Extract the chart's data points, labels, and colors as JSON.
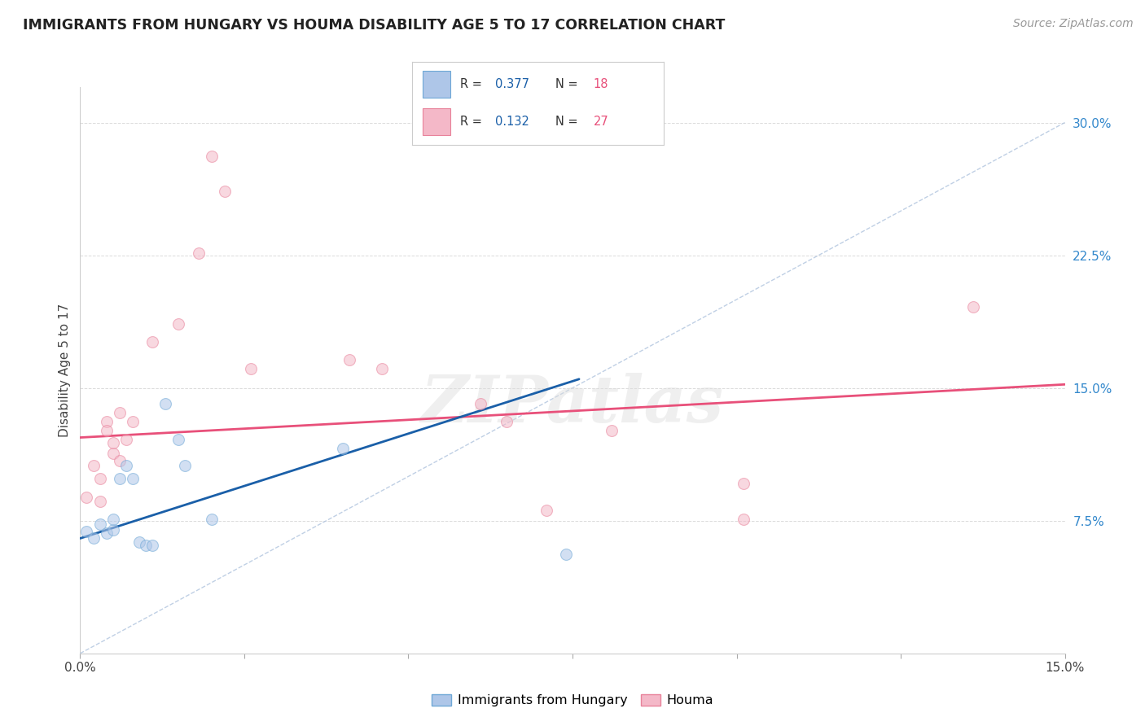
{
  "title": "IMMIGRANTS FROM HUNGARY VS HOUMA DISABILITY AGE 5 TO 17 CORRELATION CHART",
  "source": "Source: ZipAtlas.com",
  "ylabel": "Disability Age 5 to 17",
  "xlim": [
    0.0,
    0.15
  ],
  "ylim": [
    0.0,
    0.32
  ],
  "xticks": [
    0.0,
    0.025,
    0.05,
    0.075,
    0.1,
    0.125,
    0.15
  ],
  "xticklabels": [
    "0.0%",
    "",
    "",
    "",
    "",
    "",
    "15.0%"
  ],
  "yticks_right": [
    0.075,
    0.15,
    0.225,
    0.3
  ],
  "ytick_labels_right": [
    "7.5%",
    "15.0%",
    "22.5%",
    "30.0%"
  ],
  "blue_scatter": [
    [
      0.001,
      0.069
    ],
    [
      0.002,
      0.065
    ],
    [
      0.003,
      0.073
    ],
    [
      0.004,
      0.068
    ],
    [
      0.005,
      0.07
    ],
    [
      0.005,
      0.076
    ],
    [
      0.006,
      0.099
    ],
    [
      0.007,
      0.106
    ],
    [
      0.008,
      0.099
    ],
    [
      0.009,
      0.063
    ],
    [
      0.01,
      0.061
    ],
    [
      0.011,
      0.061
    ],
    [
      0.013,
      0.141
    ],
    [
      0.015,
      0.121
    ],
    [
      0.016,
      0.106
    ],
    [
      0.02,
      0.076
    ],
    [
      0.04,
      0.116
    ],
    [
      0.074,
      0.056
    ]
  ],
  "pink_scatter": [
    [
      0.001,
      0.088
    ],
    [
      0.002,
      0.106
    ],
    [
      0.003,
      0.086
    ],
    [
      0.003,
      0.099
    ],
    [
      0.004,
      0.131
    ],
    [
      0.004,
      0.126
    ],
    [
      0.005,
      0.113
    ],
    [
      0.005,
      0.119
    ],
    [
      0.006,
      0.136
    ],
    [
      0.006,
      0.109
    ],
    [
      0.007,
      0.121
    ],
    [
      0.008,
      0.131
    ],
    [
      0.011,
      0.176
    ],
    [
      0.015,
      0.186
    ],
    [
      0.018,
      0.226
    ],
    [
      0.02,
      0.281
    ],
    [
      0.022,
      0.261
    ],
    [
      0.026,
      0.161
    ],
    [
      0.041,
      0.166
    ],
    [
      0.046,
      0.161
    ],
    [
      0.061,
      0.141
    ],
    [
      0.065,
      0.131
    ],
    [
      0.071,
      0.081
    ],
    [
      0.081,
      0.126
    ],
    [
      0.101,
      0.096
    ],
    [
      0.101,
      0.076
    ],
    [
      0.136,
      0.196
    ]
  ],
  "blue_line_x": [
    0.0,
    0.076
  ],
  "blue_line_y": [
    0.065,
    0.155
  ],
  "pink_line_x": [
    0.0,
    0.15
  ],
  "pink_line_y": [
    0.122,
    0.152
  ],
  "diag_line_x": [
    0.0,
    0.15
  ],
  "diag_line_y": [
    0.0,
    0.3
  ],
  "scatter_size": 100,
  "scatter_alpha": 0.55,
  "blue_color": "#aec6e8",
  "pink_color": "#f4b8c8",
  "blue_edge_color": "#6fa8d6",
  "pink_edge_color": "#e8829a",
  "blue_line_color": "#1a5fa8",
  "pink_line_color": "#e8507a",
  "diag_line_color": "#b0c4de",
  "grid_color": "#d8d8d8",
  "watermark": "ZIPatlas",
  "background_color": "#ffffff",
  "legend_blue_r": "0.377",
  "legend_blue_n": "18",
  "legend_pink_r": "0.132",
  "legend_pink_n": "27",
  "r_text_color": "#1a5fa8",
  "n_text_color": "#e8507a"
}
